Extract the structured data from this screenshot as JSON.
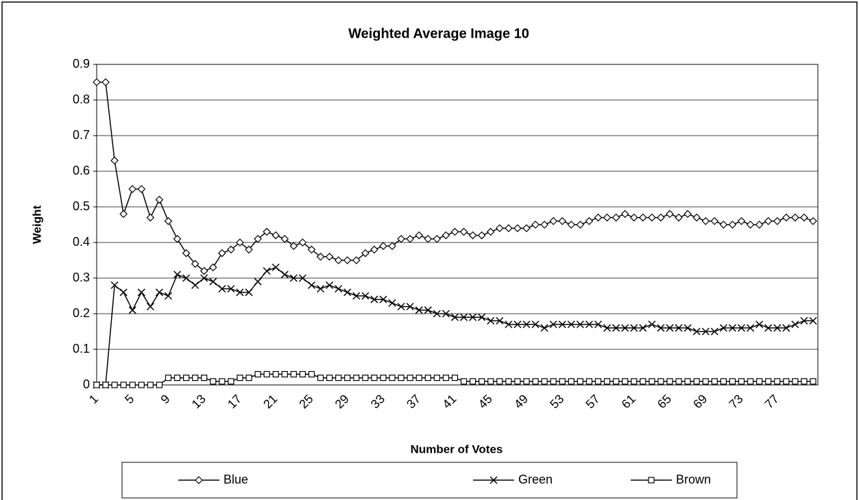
{
  "chart_data": {
    "type": "line",
    "title": "Weighted Average Image 10",
    "x_label": "Number of Votes",
    "y_label": "Weight",
    "categories": [
      "1",
      null,
      null,
      null,
      "5",
      null,
      null,
      null,
      "9",
      null,
      null,
      null,
      "13",
      null,
      null,
      null,
      "17",
      null,
      null,
      null,
      "21",
      null,
      null,
      null,
      "25",
      null,
      null,
      null,
      "29",
      null,
      null,
      null,
      "33",
      null,
      null,
      null,
      "37",
      null,
      null,
      null,
      "41",
      null,
      null,
      null,
      "45",
      null,
      null,
      null,
      "49",
      null,
      null,
      null,
      "53",
      null,
      null,
      null,
      "57",
      null,
      null,
      null,
      "61",
      null,
      null,
      null,
      "65",
      null,
      null,
      null,
      "69",
      null,
      null,
      null,
      "73",
      null,
      null,
      null,
      "77",
      null,
      null,
      null,
      null
    ],
    "series": [
      {
        "name": "Blue",
        "color": "#000000",
        "marker": "diamond",
        "values": [
          0.85,
          0.85,
          0.63,
          0.48,
          0.55,
          0.55,
          0.47,
          0.52,
          0.46,
          0.41,
          0.37,
          0.34,
          0.32,
          0.33,
          0.37,
          0.38,
          0.4,
          0.38,
          0.41,
          0.43,
          0.42,
          0.41,
          0.39,
          0.4,
          0.38,
          0.36,
          0.36,
          0.35,
          0.35,
          0.35,
          0.37,
          0.38,
          0.39,
          0.39,
          0.41,
          0.41,
          0.42,
          0.41,
          0.41,
          0.42,
          0.43,
          0.43,
          0.42,
          0.42,
          0.43,
          0.44,
          0.44,
          0.44,
          0.44,
          0.45,
          0.45,
          0.46,
          0.46,
          0.45,
          0.45,
          0.46,
          0.47,
          0.47,
          0.47,
          0.48,
          0.47,
          0.47,
          0.47,
          0.47,
          0.48,
          0.47,
          0.48,
          0.47,
          0.46,
          0.46,
          0.45,
          0.45,
          0.46,
          0.45,
          0.45,
          0.46,
          0.46,
          0.47,
          0.47,
          0.47,
          0.46
        ]
      },
      {
        "name": "Green",
        "color": "#000000",
        "marker": "x",
        "values": [
          0,
          0,
          0.28,
          0.26,
          0.21,
          0.26,
          0.22,
          0.26,
          0.25,
          0.31,
          0.3,
          0.28,
          0.3,
          0.29,
          0.27,
          0.27,
          0.26,
          0.26,
          0.29,
          0.32,
          0.33,
          0.31,
          0.3,
          0.3,
          0.28,
          0.27,
          0.28,
          0.27,
          0.26,
          0.25,
          0.25,
          0.24,
          0.24,
          0.23,
          0.22,
          0.22,
          0.21,
          0.21,
          0.2,
          0.2,
          0.19,
          0.19,
          0.19,
          0.19,
          0.18,
          0.18,
          0.17,
          0.17,
          0.17,
          0.17,
          0.16,
          0.17,
          0.17,
          0.17,
          0.17,
          0.17,
          0.17,
          0.16,
          0.16,
          0.16,
          0.16,
          0.16,
          0.17,
          0.16,
          0.16,
          0.16,
          0.16,
          0.15,
          0.15,
          0.15,
          0.16,
          0.16,
          0.16,
          0.16,
          0.17,
          0.16,
          0.16,
          0.16,
          0.17,
          0.18,
          0.18
        ]
      },
      {
        "name": "Brown",
        "color": "#000000",
        "marker": "square",
        "values": [
          0,
          0,
          0,
          0,
          0,
          0,
          0,
          0,
          0.02,
          0.02,
          0.02,
          0.02,
          0.02,
          0.01,
          0.01,
          0.01,
          0.02,
          0.02,
          0.03,
          0.03,
          0.03,
          0.03,
          0.03,
          0.03,
          0.03,
          0.02,
          0.02,
          0.02,
          0.02,
          0.02,
          0.02,
          0.02,
          0.02,
          0.02,
          0.02,
          0.02,
          0.02,
          0.02,
          0.02,
          0.02,
          0.02,
          0.01,
          0.01,
          0.01,
          0.01,
          0.01,
          0.01,
          0.01,
          0.01,
          0.01,
          0.01,
          0.01,
          0.01,
          0.01,
          0.01,
          0.01,
          0.01,
          0.01,
          0.01,
          0.01,
          0.01,
          0.01,
          0.01,
          0.01,
          0.01,
          0.01,
          0.01,
          0.01,
          0.01,
          0.01,
          0.01,
          0.01,
          0.01,
          0.01,
          0.01,
          0.01,
          0.01,
          0.01,
          0.01,
          0.01,
          0.01
        ]
      }
    ],
    "ylim": [
      0,
      0.9
    ],
    "yticks": [
      0,
      0.1,
      0.2,
      0.3,
      0.4,
      0.5,
      0.6,
      0.7,
      0.8,
      0.9
    ],
    "grid": true
  }
}
